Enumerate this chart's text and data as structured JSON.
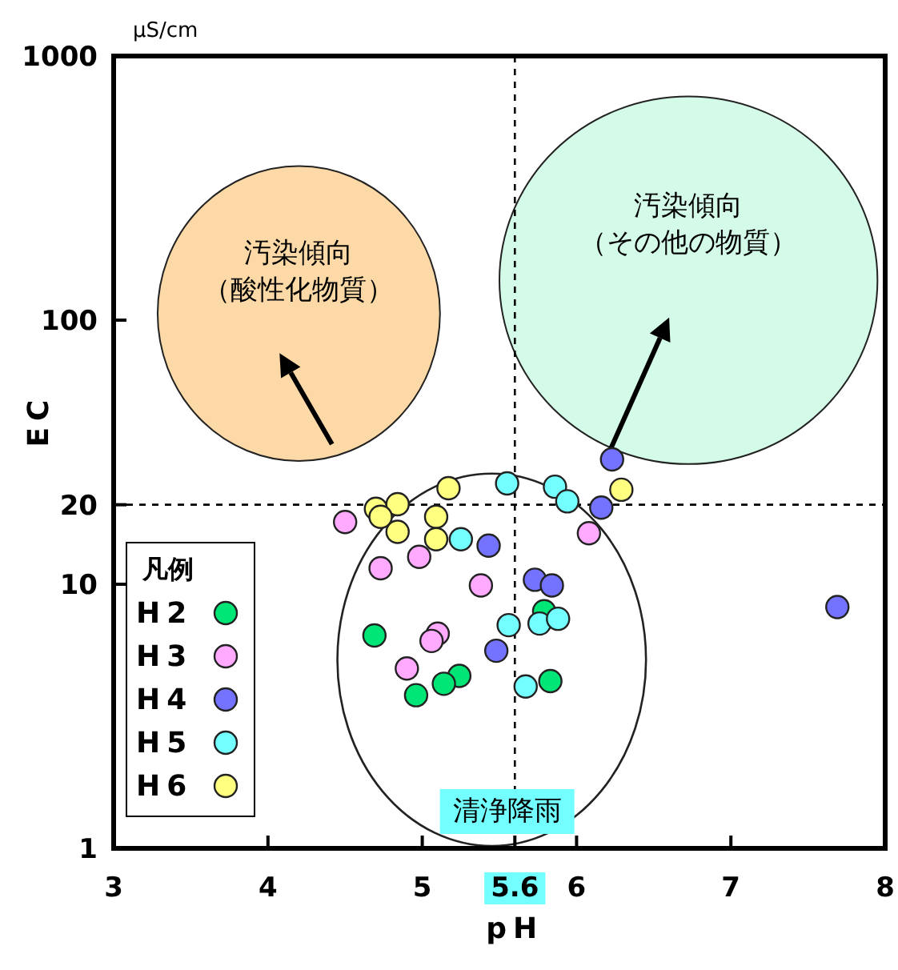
{
  "chart_data": {
    "type": "scatter",
    "xlabel": "pH",
    "ylabel": "EC",
    "legend_title": "凡例",
    "annotations": [
      "μS/cm",
      "汚染傾向",
      "（酸性化物質）",
      "汚染傾向",
      "（その他の物質）",
      "清浄降雨"
    ],
    "xlim": [
      3,
      8
    ],
    "xticks": [
      3,
      4,
      5,
      5.6,
      6,
      7,
      8
    ],
    "ylim": [
      1,
      1000
    ],
    "yticks": [
      1,
      10,
      20,
      100,
      1000
    ],
    "log": "y",
    "ref_lines": [
      {
        "axis": "x",
        "value": 5.6,
        "line_style": "dashed"
      },
      {
        "axis": "y",
        "value": 20,
        "line_style": "dashed"
      }
    ],
    "legend": "bottom left",
    "marker": "circle",
    "series": [
      {
        "name": "H2",
        "color": "#00e676",
        "x": [
          5.79,
          4.69,
          5.24,
          5.14,
          4.96,
          5.83
        ],
        "values": [
          7.9,
          6.4,
          4.5,
          4.2,
          3.8,
          4.3
        ]
      },
      {
        "name": "H3",
        "color": "#ffaaff",
        "x": [
          4.5,
          4.98,
          4.73,
          5.38,
          5.1,
          5.06,
          4.9,
          6.08
        ],
        "values": [
          17.2,
          12.7,
          11.5,
          9.9,
          6.5,
          6.1,
          4.8,
          15.6
        ]
      },
      {
        "name": "H4",
        "color": "#7373ff",
        "x": [
          5.43,
          5.73,
          5.84,
          5.48,
          6.16,
          6.23,
          7.69
        ],
        "values": [
          14,
          10.4,
          9.9,
          5.6,
          19.5,
          29.7,
          8.2
        ]
      },
      {
        "name": "H5",
        "color": "#73ffff",
        "x": [
          5.55,
          5.86,
          5.94,
          5.25,
          5.56,
          5.76,
          5.88,
          5.67
        ],
        "values": [
          24.1,
          23.4,
          20.6,
          14.8,
          7,
          7.1,
          7.4,
          4.1
        ]
      },
      {
        "name": "H6",
        "color": "#ffff80",
        "x": [
          5.17,
          4.7,
          4.84,
          4.73,
          4.84,
          5.09,
          5.09,
          6.29
        ],
        "values": [
          23.1,
          19.3,
          20.1,
          18,
          15.8,
          18,
          14.8,
          22.8
        ]
      }
    ]
  }
}
